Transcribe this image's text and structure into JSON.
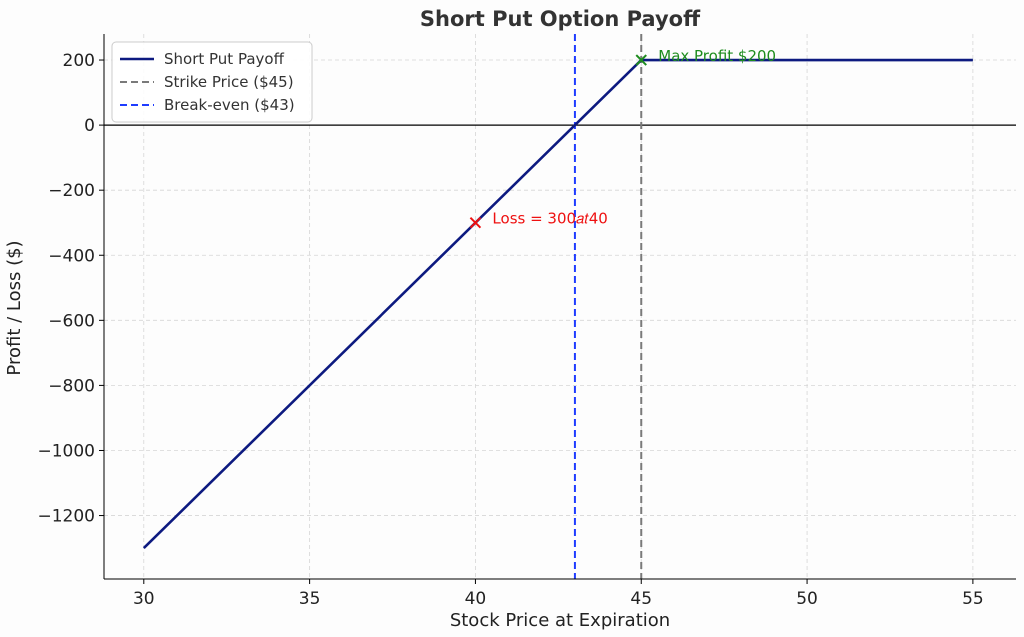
{
  "chart_data": {
    "type": "line",
    "title": "Short Put Option Payoff",
    "xlabel": "Stock Price at Expiration",
    "ylabel": "Profit / Loss ($)",
    "xlim": [
      28.8,
      56.3
    ],
    "ylim": [
      -1395,
      280
    ],
    "xticks": [
      30,
      35,
      40,
      45,
      50,
      55
    ],
    "yticks": [
      200,
      0,
      -200,
      -400,
      -600,
      -800,
      -1000,
      -1200
    ],
    "ytick_labels": [
      "200",
      "0",
      "−200",
      "−400",
      "−600",
      "−800",
      "−1000",
      "−1200"
    ],
    "grid": true,
    "legend_position": "top-left",
    "series": [
      {
        "name": "Short Put Payoff",
        "color": "#0d1a80",
        "style": "solid",
        "x": [
          30,
          45,
          55
        ],
        "y": [
          -1300,
          200,
          200
        ]
      }
    ],
    "vlines": [
      {
        "name": "Strike Price ($45)",
        "x": 45,
        "color": "#7a7a7a",
        "style": "dashed"
      },
      {
        "name": "Break-even ($43)",
        "x": 43,
        "color": "#1f3cff",
        "style": "dashed"
      }
    ],
    "hlines": [
      {
        "y": 0,
        "color": "#000000"
      }
    ],
    "annotations": [
      {
        "text": "Max Profit $200",
        "x": 45,
        "y": 200,
        "marker": "x",
        "color": "#1e8c1e"
      },
      {
        "text": "Loss = 300𝑎𝑡40",
        "x": 40,
        "y": -300,
        "marker": "x",
        "color": "#ee1111"
      }
    ]
  }
}
